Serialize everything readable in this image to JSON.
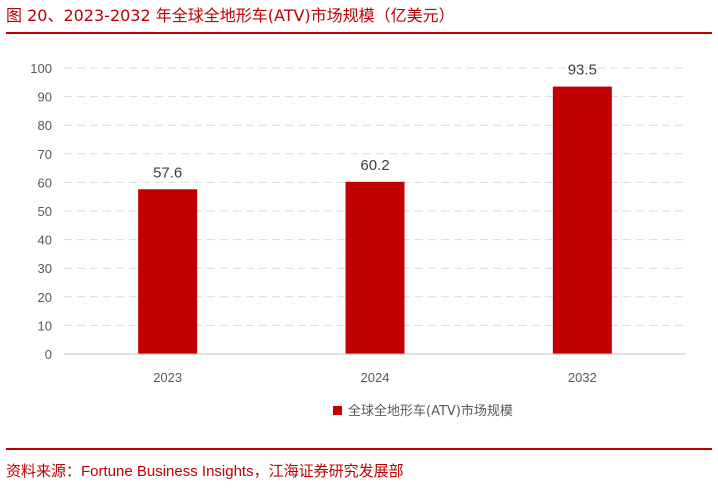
{
  "figure": {
    "title": "图 20、2023-2032 年全球全地形车(ATV)市场规模（亿美元）"
  },
  "source": {
    "prefix": "资料来源：",
    "name": "Fortune Business Insights",
    "suffix": "，江海证券研究发展部"
  },
  "colors": {
    "accent": "#c00000",
    "bar": "#c00000",
    "grid": "#d9d9d9",
    "axis": "#bfbfbf",
    "tick_text": "#595959"
  },
  "chart_data": {
    "type": "bar",
    "categories": [
      "2023",
      "2024",
      "2032"
    ],
    "series": [
      {
        "name": "全球全地形车(ATV)市场规模",
        "values": [
          57.6,
          60.2,
          93.5
        ]
      }
    ],
    "data_labels": [
      "57.6",
      "60.2",
      "93.5"
    ],
    "ylim": [
      0,
      100
    ],
    "yticks": [
      0,
      10,
      20,
      30,
      40,
      50,
      60,
      70,
      80,
      90,
      100
    ],
    "grid": true,
    "legend_position": "bottom-center"
  }
}
